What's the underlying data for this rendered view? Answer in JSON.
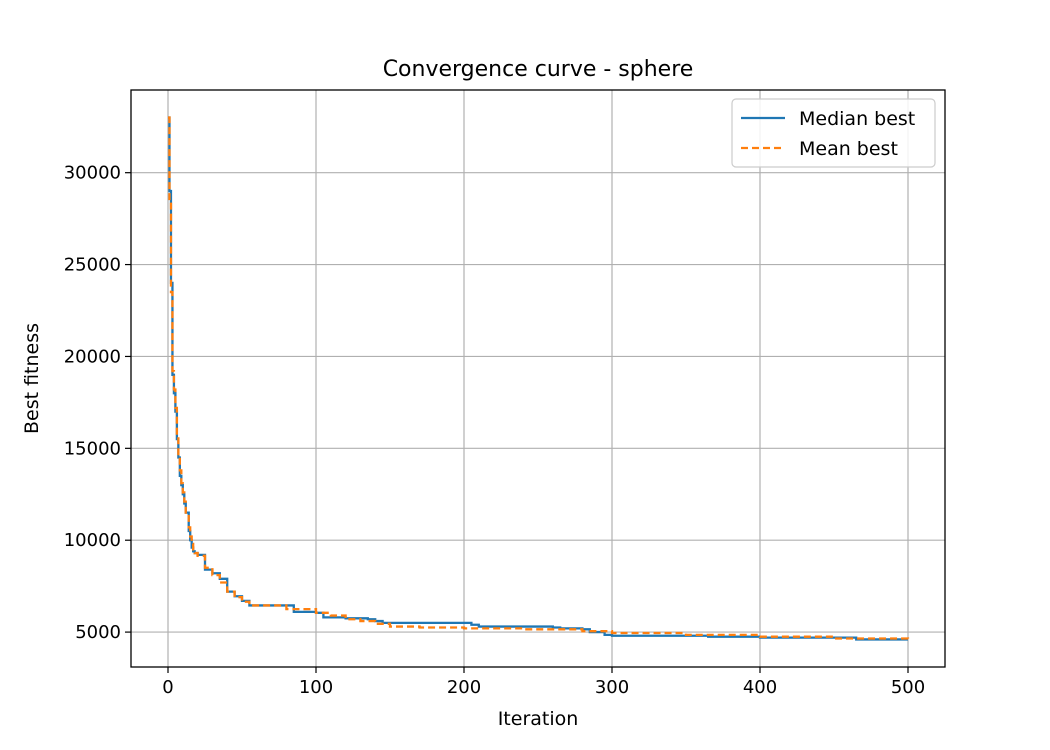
{
  "chart_data": {
    "type": "line",
    "title": "Convergence curve - sphere",
    "xlabel": "Iteration",
    "ylabel": "Best fitness",
    "xlim": [
      -25,
      525
    ],
    "ylim": [
      3100,
      34500
    ],
    "xticks": [
      0,
      100,
      200,
      300,
      400,
      500
    ],
    "yticks": [
      5000,
      10000,
      15000,
      20000,
      25000,
      30000
    ],
    "grid": true,
    "legend_position": "top-right",
    "series": [
      {
        "name": "Median best",
        "color": "#1f77b4",
        "style": "solid",
        "x": [
          0,
          1,
          2,
          3,
          4,
          5,
          6,
          7,
          8,
          9,
          10,
          11,
          12,
          14,
          15,
          16,
          17,
          18,
          20,
          25,
          30,
          35,
          40,
          45,
          50,
          55,
          85,
          100,
          105,
          120,
          135,
          140,
          145,
          205,
          210,
          260,
          265,
          280,
          285,
          295,
          300,
          360,
          365,
          400,
          460,
          465,
          500
        ],
        "y": [
          33000,
          29000,
          24000,
          19000,
          18000,
          17000,
          15500,
          14500,
          13500,
          13000,
          12500,
          12000,
          11500,
          10500,
          10000,
          9600,
          9400,
          9300,
          9200,
          8400,
          8200,
          7900,
          7200,
          6950,
          6700,
          6450,
          6100,
          6050,
          5800,
          5750,
          5700,
          5600,
          5500,
          5400,
          5300,
          5250,
          5200,
          5150,
          5000,
          4850,
          4800,
          4800,
          4750,
          4700,
          4700,
          4600,
          4600
        ]
      },
      {
        "name": "Mean best",
        "color": "#ff7f0e",
        "style": "dashed",
        "x": [
          0,
          1,
          2,
          3,
          4,
          5,
          6,
          7,
          8,
          9,
          10,
          11,
          12,
          14,
          15,
          16,
          17,
          18,
          20,
          25,
          30,
          35,
          40,
          45,
          50,
          55,
          80,
          100,
          110,
          120,
          130,
          140,
          150,
          170,
          200,
          240,
          280,
          300,
          350,
          400,
          450,
          500
        ],
        "y": [
          33000,
          28500,
          23500,
          19200,
          18200,
          17200,
          15800,
          14600,
          13800,
          13100,
          12600,
          12100,
          11400,
          10700,
          10200,
          9800,
          9500,
          9300,
          9150,
          8500,
          8100,
          7700,
          7200,
          6900,
          6650,
          6450,
          6250,
          6050,
          5900,
          5700,
          5600,
          5450,
          5300,
          5250,
          5200,
          5150,
          5050,
          4950,
          4850,
          4750,
          4650,
          4600
        ]
      }
    ]
  }
}
